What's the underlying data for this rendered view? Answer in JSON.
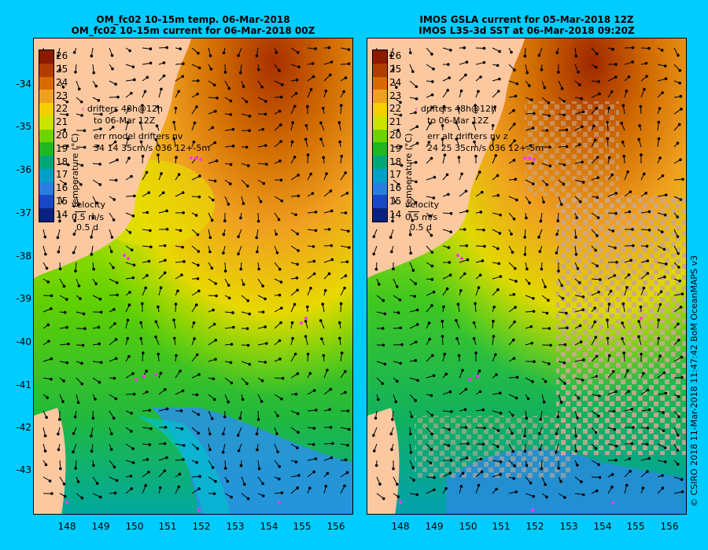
{
  "panels": [
    {
      "title_line1": "OM_fc02 10-15m temp. 06-Mar-2018",
      "title_line2": "OM_fc02 10-15m current for 06-Mar-2018 00Z",
      "drifters_label": "drifters 48h@12h",
      "drifters_date": "to 06-Mar 12Z",
      "err_label": "err model drifters nv",
      "err_values": "34 14 35cm/s 036 12+-5m"
    },
    {
      "title_line1": "IMOS GSLA current for 05-Mar-2018 12Z",
      "title_line2": "IMOS L3S-3d SST at 06-Mar-2018 09:20Z",
      "drifters_label": "drifters 48h@12h",
      "drifters_date": "to 06-Mar 12Z",
      "err_label": "err alt drifters nv z",
      "err_values": "24 25 35cm/s 036 12+-5m"
    }
  ],
  "colorbar": {
    "label": "temperature (°C)",
    "ticks": [
      "26",
      "25",
      "24",
      "23",
      "22",
      "21",
      "20",
      "19",
      "18",
      "17",
      "16",
      "15",
      "14"
    ],
    "colors": [
      "#8b1a00",
      "#b23b00",
      "#d96a00",
      "#f0a020",
      "#f5d000",
      "#c8e400",
      "#6cd400",
      "#20b820",
      "#00a878",
      "#00a0c8",
      "#2a7ee0",
      "#1848c8",
      "#0a2080"
    ]
  },
  "velocity_legend": {
    "title": "velocity",
    "speed": "0.5 m/s",
    "duration": "0.5 d"
  },
  "lat_ticks": [
    "-34",
    "-35",
    "-36",
    "-37",
    "-38",
    "-39",
    "-40",
    "-41",
    "-42",
    "-43"
  ],
  "lon_ticks_left": [
    "148",
    "149",
    "150",
    "151",
    "152",
    "153",
    "154",
    "155",
    "156"
  ],
  "lon_ticks_right": [
    "148",
    "149",
    "150",
    "151",
    "152",
    "153",
    "154",
    "155",
    "156"
  ],
  "footer": "© CSIRO 2018   11-Mar-2018 11:47:42 BoM OceanMAPS v3",
  "colors": {
    "land": "#fcc8a0",
    "background": "#00ccff",
    "drifter": "#ff33ff",
    "arrow": "#000000"
  }
}
